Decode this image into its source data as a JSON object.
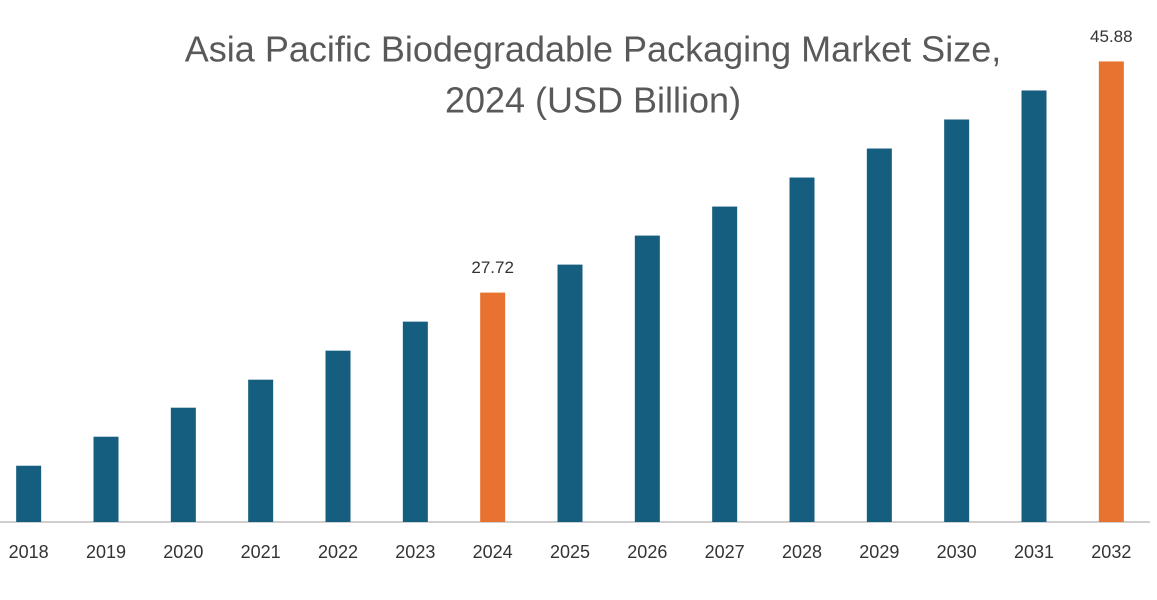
{
  "chart_data": {
    "type": "bar",
    "title": [
      "Asia Pacific Biodegradable Packaging Market Size,",
      "2024 (USD Billion)"
    ],
    "categories": [
      "2018",
      "2019",
      "2020",
      "2021",
      "2022",
      "2023",
      "2024",
      "2025",
      "2026",
      "2027",
      "2028",
      "2029",
      "2030",
      "2031",
      "2032"
    ],
    "values": [
      14.12,
      16.4,
      18.68,
      20.88,
      23.16,
      25.44,
      27.72,
      29.92,
      32.2,
      34.48,
      36.76,
      39.04,
      41.32,
      43.6,
      45.88
    ],
    "value_labels": [
      null,
      null,
      null,
      null,
      null,
      null,
      "27.72",
      null,
      null,
      null,
      null,
      null,
      null,
      null,
      "45.88"
    ],
    "colors": [
      "#155e7f",
      "#155e7f",
      "#155e7f",
      "#155e7f",
      "#155e7f",
      "#155e7f",
      "#e8722f",
      "#155e7f",
      "#155e7f",
      "#155e7f",
      "#155e7f",
      "#155e7f",
      "#155e7f",
      "#155e7f",
      "#e8722f"
    ],
    "ylim": [
      9.7,
      50
    ]
  }
}
